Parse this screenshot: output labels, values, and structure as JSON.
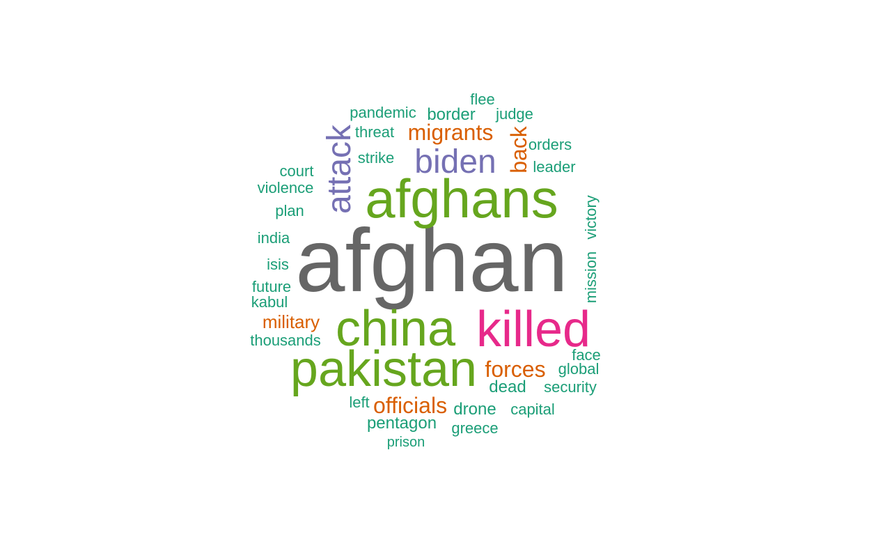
{
  "palette": {
    "gray": "#666666",
    "green": "#66a61e",
    "teal": "#1b9e77",
    "orange": "#d95f02",
    "purple": "#7570b3",
    "magenta": "#e7298a"
  },
  "words": [
    {
      "text": "afghan",
      "color": "gray",
      "orientation": "horizontal"
    },
    {
      "text": "afghans",
      "color": "green",
      "orientation": "horizontal"
    },
    {
      "text": "china",
      "color": "green",
      "orientation": "horizontal"
    },
    {
      "text": "pakistan",
      "color": "green",
      "orientation": "horizontal"
    },
    {
      "text": "killed",
      "color": "magenta",
      "orientation": "horizontal"
    },
    {
      "text": "biden",
      "color": "purple",
      "orientation": "horizontal"
    },
    {
      "text": "attack",
      "color": "purple",
      "orientation": "vertical"
    },
    {
      "text": "migrants",
      "color": "orange",
      "orientation": "horizontal"
    },
    {
      "text": "back",
      "color": "orange",
      "orientation": "vertical"
    },
    {
      "text": "forces",
      "color": "orange",
      "orientation": "horizontal"
    },
    {
      "text": "officials",
      "color": "orange",
      "orientation": "horizontal"
    },
    {
      "text": "military",
      "color": "orange",
      "orientation": "horizontal"
    },
    {
      "text": "pandemic",
      "color": "teal",
      "orientation": "horizontal"
    },
    {
      "text": "border",
      "color": "teal",
      "orientation": "horizontal"
    },
    {
      "text": "flee",
      "color": "teal",
      "orientation": "horizontal"
    },
    {
      "text": "judge",
      "color": "teal",
      "orientation": "horizontal"
    },
    {
      "text": "threat",
      "color": "teal",
      "orientation": "horizontal"
    },
    {
      "text": "orders",
      "color": "teal",
      "orientation": "horizontal"
    },
    {
      "text": "strike",
      "color": "teal",
      "orientation": "horizontal"
    },
    {
      "text": "leader",
      "color": "teal",
      "orientation": "horizontal"
    },
    {
      "text": "court",
      "color": "teal",
      "orientation": "horizontal"
    },
    {
      "text": "violence",
      "color": "teal",
      "orientation": "horizontal"
    },
    {
      "text": "plan",
      "color": "teal",
      "orientation": "horizontal"
    },
    {
      "text": "victory",
      "color": "teal",
      "orientation": "vertical"
    },
    {
      "text": "mission",
      "color": "teal",
      "orientation": "vertical"
    },
    {
      "text": "india",
      "color": "teal",
      "orientation": "horizontal"
    },
    {
      "text": "isis",
      "color": "teal",
      "orientation": "horizontal"
    },
    {
      "text": "future",
      "color": "teal",
      "orientation": "horizontal"
    },
    {
      "text": "kabul",
      "color": "teal",
      "orientation": "horizontal"
    },
    {
      "text": "thousands",
      "color": "teal",
      "orientation": "horizontal"
    },
    {
      "text": "face",
      "color": "teal",
      "orientation": "horizontal"
    },
    {
      "text": "global",
      "color": "teal",
      "orientation": "horizontal"
    },
    {
      "text": "dead",
      "color": "teal",
      "orientation": "horizontal"
    },
    {
      "text": "security",
      "color": "teal",
      "orientation": "horizontal"
    },
    {
      "text": "left",
      "color": "teal",
      "orientation": "horizontal"
    },
    {
      "text": "drone",
      "color": "teal",
      "orientation": "horizontal"
    },
    {
      "text": "capital",
      "color": "teal",
      "orientation": "horizontal"
    },
    {
      "text": "pentagon",
      "color": "teal",
      "orientation": "horizontal"
    },
    {
      "text": "greece",
      "color": "teal",
      "orientation": "horizontal"
    },
    {
      "text": "prison",
      "color": "teal",
      "orientation": "horizontal"
    }
  ]
}
